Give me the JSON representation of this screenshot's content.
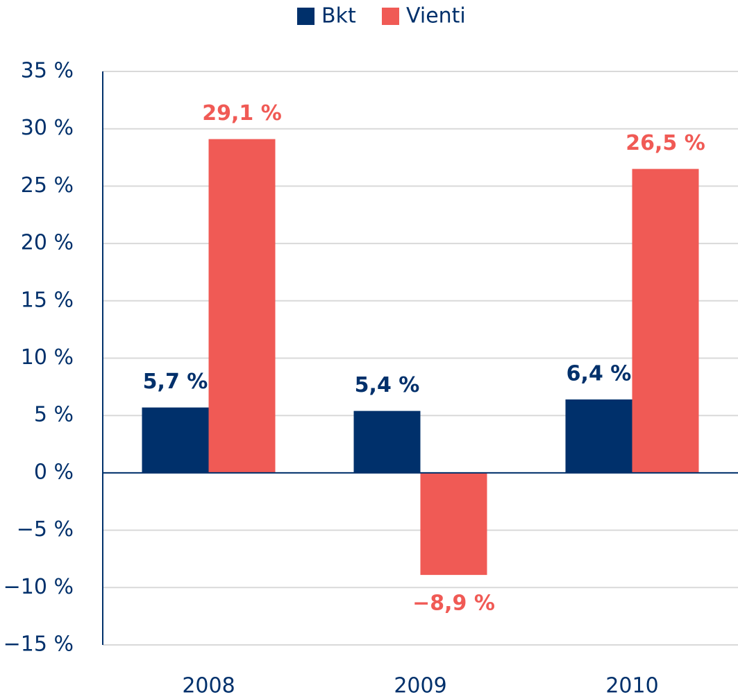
{
  "chart_data": {
    "type": "bar",
    "categories": [
      "2008",
      "2009",
      "2010"
    ],
    "series": [
      {
        "name": "Bkt",
        "color": "#00306b",
        "values": [
          5.7,
          5.4,
          6.4
        ],
        "value_labels": [
          "5,7 %",
          "5,4 %",
          "6,4 %"
        ]
      },
      {
        "name": "Vienti",
        "color": "#f05a55",
        "values": [
          29.1,
          -8.9,
          26.5
        ],
        "value_labels": [
          "29,1 %",
          "−8,9 %",
          "26,5 %"
        ]
      }
    ],
    "ylim": [
      -15,
      35
    ],
    "yticks": [
      {
        "value": -15,
        "label": "−15 %"
      },
      {
        "value": -10,
        "label": "−10 %"
      },
      {
        "value": -5,
        "label": "−5 %"
      },
      {
        "value": 0,
        "label": "0 %"
      },
      {
        "value": 5,
        "label": "5 %"
      },
      {
        "value": 10,
        "label": "10 %"
      },
      {
        "value": 15,
        "label": "15 %"
      },
      {
        "value": 20,
        "label": "20 %"
      },
      {
        "value": 25,
        "label": "25 %"
      },
      {
        "value": 30,
        "label": "30 %"
      },
      {
        "value": 35,
        "label": "35 %"
      }
    ],
    "grid": true,
    "legend": "top"
  }
}
